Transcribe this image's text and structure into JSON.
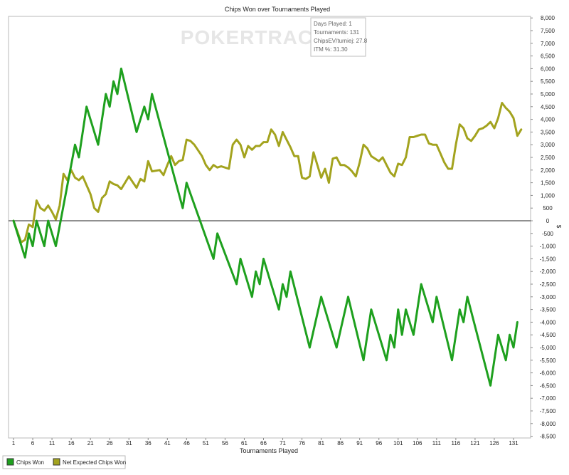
{
  "chart_data": {
    "type": "line",
    "title": "Chips Won over Tournaments Played",
    "xlabel": "Tournaments Played",
    "ylabel": "",
    "xlim": [
      1,
      131
    ],
    "ylim": [
      -8500,
      8000
    ],
    "x_ticks": [
      1,
      6,
      11,
      16,
      21,
      26,
      31,
      36,
      41,
      46,
      51,
      56,
      61,
      66,
      71,
      76,
      81,
      86,
      91,
      96,
      101,
      106,
      111,
      116,
      121,
      126,
      131
    ],
    "y_ticks": [
      {
        "v": 8000,
        "t": "8,000"
      },
      {
        "v": 7500,
        "t": "7,500"
      },
      {
        "v": 7000,
        "t": "7,000"
      },
      {
        "v": 6500,
        "t": "6,500"
      },
      {
        "v": 6000,
        "t": "6,000"
      },
      {
        "v": 5500,
        "t": "5,500"
      },
      {
        "v": 5000,
        "t": "5,000"
      },
      {
        "v": 4500,
        "t": "4,500"
      },
      {
        "v": 4000,
        "t": "4,000"
      },
      {
        "v": 3500,
        "t": "3,500"
      },
      {
        "v": 3000,
        "t": "3,000"
      },
      {
        "v": 2500,
        "t": "2,500"
      },
      {
        "v": 2000,
        "t": "2,000"
      },
      {
        "v": 1500,
        "t": "1,500"
      },
      {
        "v": 1000,
        "t": "1,000"
      },
      {
        "v": 500,
        "t": "500"
      },
      {
        "v": 0,
        "t": "0"
      },
      {
        "v": -500,
        "t": "-500"
      },
      {
        "v": -1000,
        "t": "-1,000"
      },
      {
        "v": -1500,
        "t": "-1,500"
      },
      {
        "v": -2000,
        "t": "-2,000"
      },
      {
        "v": -2500,
        "t": "-2,500"
      },
      {
        "v": -3000,
        "t": "-3,000"
      },
      {
        "v": -3500,
        "t": "-3,500"
      },
      {
        "v": -4000,
        "t": "-4,000"
      },
      {
        "v": -4500,
        "t": "-4,500"
      },
      {
        "v": -5000,
        "t": "-5,000"
      },
      {
        "v": -5500,
        "t": "-5,500"
      },
      {
        "v": -6000,
        "t": "-6,000"
      },
      {
        "v": -6500,
        "t": "-6,500"
      },
      {
        "v": -7000,
        "t": "-7,000"
      },
      {
        "v": -7500,
        "t": "-7,500"
      },
      {
        "v": -8000,
        "t": "-8,000"
      },
      {
        "v": -8500,
        "t": "-8,500"
      }
    ],
    "y_axis_unit": "$",
    "grid": false,
    "legend_position": "bottom-left",
    "series": [
      {
        "name": "Chips Won",
        "color": "#1ea01e",
        "points": [
          [
            1,
            0
          ],
          [
            4,
            -1450
          ],
          [
            5,
            -500
          ],
          [
            6,
            -1000
          ],
          [
            7,
            0
          ],
          [
            9,
            -1000
          ],
          [
            10,
            0
          ],
          [
            12,
            -1000
          ],
          [
            17,
            3000
          ],
          [
            18,
            2500
          ],
          [
            20,
            4500
          ],
          [
            23,
            3000
          ],
          [
            25,
            5000
          ],
          [
            26,
            4500
          ],
          [
            27,
            5500
          ],
          [
            28,
            5000
          ],
          [
            29,
            6000
          ],
          [
            33,
            3500
          ],
          [
            35,
            4500
          ],
          [
            36,
            4000
          ],
          [
            37,
            5000
          ],
          [
            45,
            500
          ],
          [
            46,
            1500
          ],
          [
            53,
            -1500
          ],
          [
            54,
            -500
          ],
          [
            59,
            -2500
          ],
          [
            60,
            -1500
          ],
          [
            63,
            -3000
          ],
          [
            64,
            -2000
          ],
          [
            65,
            -2500
          ],
          [
            66,
            -1500
          ],
          [
            70,
            -3500
          ],
          [
            71,
            -2500
          ],
          [
            72,
            -3000
          ],
          [
            73,
            -2000
          ],
          [
            78,
            -5000
          ],
          [
            81,
            -3000
          ],
          [
            85,
            -5000
          ],
          [
            88,
            -3000
          ],
          [
            92,
            -5500
          ],
          [
            94,
            -3500
          ],
          [
            98,
            -5500
          ],
          [
            99,
            -4500
          ],
          [
            100,
            -5000
          ],
          [
            101,
            -3500
          ],
          [
            102,
            -4500
          ],
          [
            103,
            -3500
          ],
          [
            105,
            -4500
          ],
          [
            107,
            -2500
          ],
          [
            110,
            -4000
          ],
          [
            111,
            -3000
          ],
          [
            115,
            -5500
          ],
          [
            117,
            -3500
          ],
          [
            118,
            -4000
          ],
          [
            119,
            -3000
          ],
          [
            125,
            -6500
          ],
          [
            127,
            -4500
          ],
          [
            129,
            -5500
          ],
          [
            130,
            -4500
          ],
          [
            131,
            -5000
          ],
          [
            132,
            -4000
          ]
        ]
      },
      {
        "name": "Net Expected Chips Won",
        "color": "#a3a31e",
        "points": [
          [
            1,
            0
          ],
          [
            3,
            -850
          ],
          [
            4,
            -750
          ],
          [
            5,
            -150
          ],
          [
            6,
            -250
          ],
          [
            7,
            800
          ],
          [
            8,
            500
          ],
          [
            9,
            400
          ],
          [
            10,
            600
          ],
          [
            11,
            350
          ],
          [
            12,
            50
          ],
          [
            13,
            600
          ],
          [
            14,
            1850
          ],
          [
            15,
            1600
          ],
          [
            16,
            2000
          ],
          [
            17,
            1700
          ],
          [
            18,
            1600
          ],
          [
            19,
            1750
          ],
          [
            21,
            1050
          ],
          [
            22,
            500
          ],
          [
            23,
            350
          ],
          [
            24,
            900
          ],
          [
            25,
            1050
          ],
          [
            26,
            1550
          ],
          [
            27,
            1450
          ],
          [
            28,
            1400
          ],
          [
            29,
            1250
          ],
          [
            31,
            1750
          ],
          [
            33,
            1300
          ],
          [
            34,
            1650
          ],
          [
            35,
            1550
          ],
          [
            36,
            2350
          ],
          [
            37,
            1950
          ],
          [
            39,
            2000
          ],
          [
            40,
            1800
          ],
          [
            41,
            2200
          ],
          [
            42,
            2550
          ],
          [
            43,
            2200
          ],
          [
            44,
            2350
          ],
          [
            45,
            2400
          ],
          [
            46,
            3200
          ],
          [
            47,
            3150
          ],
          [
            48,
            3000
          ],
          [
            50,
            2550
          ],
          [
            51,
            2200
          ],
          [
            52,
            2000
          ],
          [
            53,
            2200
          ],
          [
            54,
            2100
          ],
          [
            55,
            2150
          ],
          [
            57,
            2050
          ],
          [
            58,
            3000
          ],
          [
            59,
            3200
          ],
          [
            60,
            3000
          ],
          [
            61,
            2500
          ],
          [
            62,
            2950
          ],
          [
            63,
            2800
          ],
          [
            64,
            2950
          ],
          [
            65,
            2950
          ],
          [
            66,
            3100
          ],
          [
            67,
            3100
          ],
          [
            68,
            3600
          ],
          [
            69,
            3400
          ],
          [
            70,
            2950
          ],
          [
            71,
            3500
          ],
          [
            72,
            3200
          ],
          [
            73,
            2900
          ],
          [
            74,
            2550
          ],
          [
            75,
            2550
          ],
          [
            76,
            1700
          ],
          [
            77,
            1650
          ],
          [
            78,
            1750
          ],
          [
            79,
            2700
          ],
          [
            80,
            2200
          ],
          [
            81,
            1700
          ],
          [
            82,
            2050
          ],
          [
            83,
            1500
          ],
          [
            84,
            2450
          ],
          [
            85,
            2500
          ],
          [
            86,
            2200
          ],
          [
            87,
            2200
          ],
          [
            88,
            2100
          ],
          [
            89,
            1950
          ],
          [
            90,
            1750
          ],
          [
            91,
            2300
          ],
          [
            92,
            3000
          ],
          [
            93,
            2850
          ],
          [
            94,
            2550
          ],
          [
            95,
            2450
          ],
          [
            96,
            2350
          ],
          [
            97,
            2500
          ],
          [
            98,
            2200
          ],
          [
            99,
            1900
          ],
          [
            100,
            1750
          ],
          [
            101,
            2250
          ],
          [
            102,
            2200
          ],
          [
            103,
            2500
          ],
          [
            104,
            3300
          ],
          [
            105,
            3300
          ],
          [
            106,
            3350
          ],
          [
            107,
            3400
          ],
          [
            108,
            3400
          ],
          [
            109,
            3050
          ],
          [
            110,
            3000
          ],
          [
            111,
            3000
          ],
          [
            112,
            2650
          ],
          [
            113,
            2300
          ],
          [
            114,
            2050
          ],
          [
            115,
            2050
          ],
          [
            116,
            3000
          ],
          [
            117,
            3800
          ],
          [
            118,
            3650
          ],
          [
            119,
            3250
          ],
          [
            120,
            3150
          ],
          [
            121,
            3350
          ],
          [
            122,
            3600
          ],
          [
            123,
            3650
          ],
          [
            124,
            3750
          ],
          [
            125,
            3900
          ],
          [
            126,
            3650
          ],
          [
            127,
            4050
          ],
          [
            128,
            4650
          ],
          [
            129,
            4450
          ],
          [
            130,
            4300
          ],
          [
            131,
            4050
          ],
          [
            132,
            3350
          ],
          [
            133,
            3600
          ]
        ]
      }
    ]
  },
  "tooltip": {
    "lines": [
      "Days Played: 1",
      "Tournaments: 131",
      "ChipsEV/turniej: 27.8",
      "ITM %: 31.30"
    ]
  },
  "watermark": "POKERTRACKER"
}
